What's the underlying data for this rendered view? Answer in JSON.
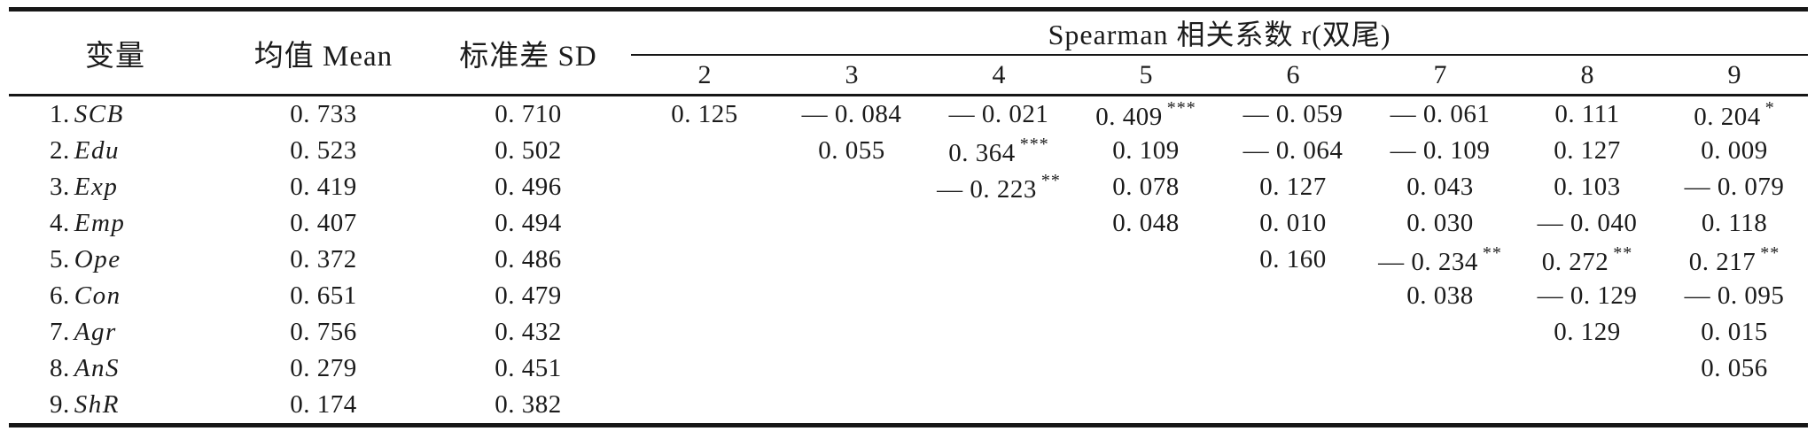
{
  "page": {
    "background_color": "#ffffff",
    "text_color": "#1b1b1b",
    "rule_color": "#161616"
  },
  "table": {
    "headers": {
      "variable": "变量",
      "mean": "均值 Mean",
      "sd": "标准差 SD",
      "spearman_group": "Spearman 相关系数 r(双尾)",
      "corr_cols": [
        "2",
        "3",
        "4",
        "5",
        "6",
        "7",
        "8",
        "9"
      ]
    },
    "rows": [
      {
        "num": "1.",
        "name": "SCB",
        "mean": "0. 733",
        "sd": "0. 710",
        "corr": [
          {
            "v": "0. 125"
          },
          {
            "v": "— 0. 084"
          },
          {
            "v": "— 0. 021"
          },
          {
            "v": "0. 409",
            "s": "***"
          },
          {
            "v": "— 0. 059"
          },
          {
            "v": "— 0. 061"
          },
          {
            "v": "0. 111"
          },
          {
            "v": "0. 204",
            "s": "*"
          }
        ]
      },
      {
        "num": "2.",
        "name": "Edu",
        "mean": "0. 523",
        "sd": "0. 502",
        "corr": [
          null,
          {
            "v": "0. 055"
          },
          {
            "v": "0. 364",
            "s": "***"
          },
          {
            "v": "0. 109"
          },
          {
            "v": "— 0. 064"
          },
          {
            "v": "— 0. 109"
          },
          {
            "v": "0. 127"
          },
          {
            "v": "0. 009"
          }
        ]
      },
      {
        "num": "3.",
        "name": "Exp",
        "mean": "0. 419",
        "sd": "0. 496",
        "corr": [
          null,
          null,
          {
            "v": "— 0. 223",
            "s": "**"
          },
          {
            "v": "0. 078"
          },
          {
            "v": "0. 127"
          },
          {
            "v": "0. 043"
          },
          {
            "v": "0. 103"
          },
          {
            "v": "— 0. 079"
          }
        ]
      },
      {
        "num": "4.",
        "name": "Emp",
        "mean": "0. 407",
        "sd": "0. 494",
        "corr": [
          null,
          null,
          null,
          {
            "v": "0. 048"
          },
          {
            "v": "0. 010"
          },
          {
            "v": "0. 030"
          },
          {
            "v": "— 0. 040"
          },
          {
            "v": "0. 118"
          }
        ]
      },
      {
        "num": "5.",
        "name": "Ope",
        "mean": "0. 372",
        "sd": "0. 486",
        "corr": [
          null,
          null,
          null,
          null,
          {
            "v": "0. 160"
          },
          {
            "v": "— 0. 234",
            "s": "**"
          },
          {
            "v": "0. 272",
            "s": "**"
          },
          {
            "v": "0. 217",
            "s": "**"
          }
        ]
      },
      {
        "num": "6.",
        "name": "Con",
        "mean": "0. 651",
        "sd": "0. 479",
        "corr": [
          null,
          null,
          null,
          null,
          null,
          {
            "v": "0. 038"
          },
          {
            "v": "— 0. 129"
          },
          {
            "v": "— 0. 095"
          }
        ]
      },
      {
        "num": "7.",
        "name": "Agr",
        "mean": "0. 756",
        "sd": "0. 432",
        "corr": [
          null,
          null,
          null,
          null,
          null,
          null,
          {
            "v": "0. 129"
          },
          {
            "v": "0. 015"
          }
        ]
      },
      {
        "num": "8.",
        "name": "AnS",
        "mean": "0. 279",
        "sd": "0. 451",
        "corr": [
          null,
          null,
          null,
          null,
          null,
          null,
          null,
          {
            "v": "0. 056"
          }
        ]
      },
      {
        "num": "9.",
        "name": "ShR",
        "mean": "0. 174",
        "sd": "0. 382",
        "corr": [
          null,
          null,
          null,
          null,
          null,
          null,
          null,
          null
        ]
      }
    ]
  }
}
